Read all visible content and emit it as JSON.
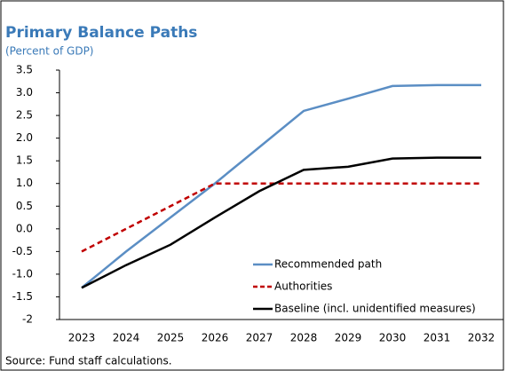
{
  "chart_data": {
    "type": "line",
    "title": "Primary Balance Paths",
    "subtitle": "(Percent of GDP)",
    "source": "Source: Fund staff calculations.",
    "categories": [
      "2023",
      "2024",
      "2025",
      "2026",
      "2027",
      "2028",
      "2029",
      "2030",
      "2031",
      "2032"
    ],
    "series": [
      {
        "name": "Recommended path",
        "color": "#5b8ec4",
        "dash": false,
        "values": [
          -1.3,
          -0.5,
          0.25,
          1.0,
          1.8,
          2.6,
          2.87,
          3.15,
          3.17,
          3.17
        ]
      },
      {
        "name": "Authorities",
        "color": "#c00000",
        "dash": true,
        "values": [
          -0.5,
          0.0,
          0.5,
          1.0,
          1.0,
          1.0,
          1.0,
          1.0,
          1.0,
          1.0
        ]
      },
      {
        "name": "Baseline (incl. unidentified measures)",
        "color": "#000000",
        "dash": false,
        "values": [
          -1.3,
          -0.8,
          -0.35,
          0.25,
          0.83,
          1.3,
          1.37,
          1.55,
          1.57,
          1.57
        ]
      }
    ],
    "ylim": [
      -2,
      3.5
    ],
    "yticks": [
      -2,
      {
        "value": -1.5,
        "label": "-1.5"
      },
      {
        "value": -1,
        "label": "-1.0"
      },
      -0.5,
      {
        "value": 0,
        "label": "0.0"
      },
      0.5,
      {
        "value": 1,
        "label": "1.0"
      },
      1.5,
      {
        "value": 2,
        "label": "2.0"
      },
      2.5,
      {
        "value": 3,
        "label": "3.0"
      },
      3.5
    ],
    "grid": false,
    "legend": "lower-right"
  }
}
